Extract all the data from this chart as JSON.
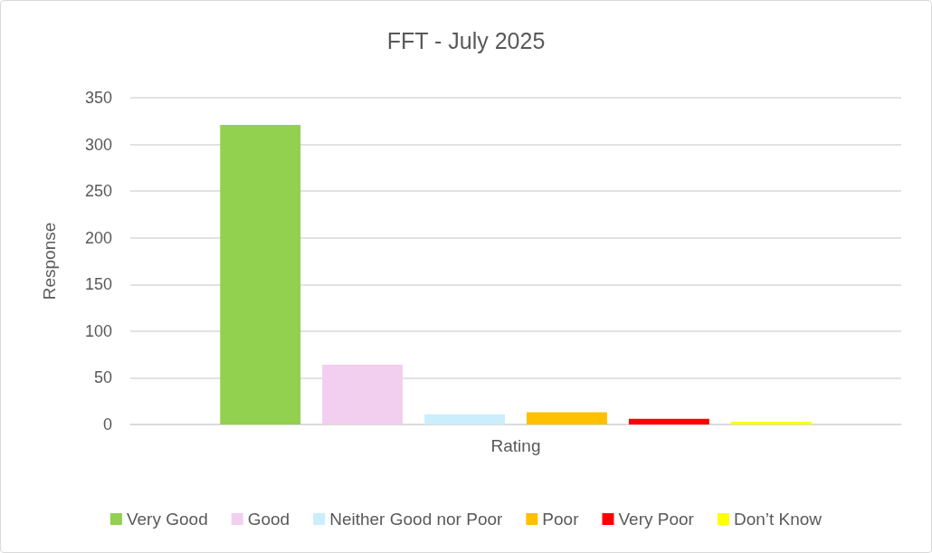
{
  "chart_data": {
    "type": "bar",
    "title": "FFT - July 2025",
    "xlabel": "Rating",
    "ylabel": "Response",
    "categories": [
      null
    ],
    "series": [
      {
        "name": "Very Good",
        "color": "#92d050",
        "values": [
          321
        ]
      },
      {
        "name": "Good",
        "color": "#f2ceef",
        "values": [
          64
        ]
      },
      {
        "name": "Neither Good nor Poor",
        "color": "#caeefb",
        "values": [
          11
        ]
      },
      {
        "name": "Poor",
        "color": "#ffc000",
        "values": [
          13
        ]
      },
      {
        "name": "Very Poor",
        "color": "#ff0000",
        "values": [
          6
        ]
      },
      {
        "name": "Don’t Know",
        "color": "#ffff00",
        "values": [
          3
        ]
      }
    ],
    "ylim": [
      0,
      350
    ],
    "yticks": [
      0,
      50,
      100,
      150,
      200,
      250,
      300,
      350
    ],
    "grid": "y",
    "legend": "bottom"
  }
}
